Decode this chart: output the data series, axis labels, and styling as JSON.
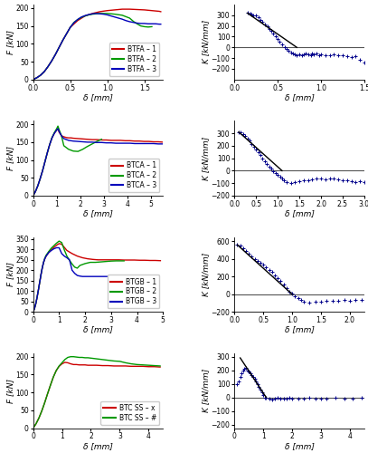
{
  "row1_left": {
    "title": "F [kN]",
    "xlabel": "δ [mm]",
    "xlim": [
      0,
      1.75
    ],
    "ylim": [
      0,
      210
    ],
    "yticks": [
      0,
      50,
      100,
      150,
      200
    ],
    "xticks": [
      0.0,
      0.5,
      1.0,
      1.5
    ],
    "legend": [
      "BTFA – 1",
      "BTFA – 2",
      "BTFA – 3"
    ],
    "colors": [
      "#cc0000",
      "#009900",
      "#0000bb"
    ],
    "c1_x": [
      0,
      0.05,
      0.1,
      0.15,
      0.2,
      0.25,
      0.3,
      0.35,
      0.4,
      0.45,
      0.5,
      0.6,
      0.7,
      0.8,
      0.9,
      1.0,
      1.1,
      1.2,
      1.3,
      1.4,
      1.5,
      1.6,
      1.65,
      1.7,
      1.72
    ],
    "c1_y": [
      0,
      5,
      12,
      22,
      36,
      52,
      70,
      90,
      110,
      128,
      146,
      165,
      178,
      185,
      190,
      193,
      195,
      197,
      197,
      196,
      195,
      193,
      192,
      191,
      190
    ],
    "c2_x": [
      0,
      0.05,
      0.1,
      0.15,
      0.2,
      0.25,
      0.3,
      0.35,
      0.4,
      0.45,
      0.5,
      0.55,
      0.6,
      0.65,
      0.7,
      0.75,
      0.8,
      0.9,
      1.0,
      1.1,
      1.2,
      1.3,
      1.35,
      1.4,
      1.45,
      1.5,
      1.55,
      1.6
    ],
    "c2_y": [
      0,
      5,
      12,
      22,
      36,
      52,
      70,
      90,
      110,
      128,
      146,
      160,
      168,
      174,
      178,
      181,
      183,
      185,
      185,
      183,
      180,
      172,
      163,
      156,
      150,
      148,
      147,
      148
    ],
    "c3_x": [
      0,
      0.05,
      0.1,
      0.15,
      0.2,
      0.25,
      0.3,
      0.35,
      0.4,
      0.45,
      0.5,
      0.55,
      0.6,
      0.65,
      0.7,
      0.75,
      0.8,
      0.85,
      0.9,
      0.95,
      1.0,
      1.05,
      1.1,
      1.15,
      1.2,
      1.25,
      1.3,
      1.35,
      1.4,
      1.45,
      1.5,
      1.55,
      1.6,
      1.65,
      1.7,
      1.72
    ],
    "c3_y": [
      0,
      5,
      12,
      22,
      36,
      52,
      70,
      90,
      110,
      128,
      146,
      159,
      168,
      175,
      179,
      182,
      184,
      185,
      184,
      183,
      181,
      178,
      175,
      172,
      169,
      165,
      162,
      160,
      158,
      157,
      157,
      156,
      156,
      156,
      155,
      155
    ]
  },
  "row1_right": {
    "title": "K [kN/mm]",
    "xlabel": "δ [mm]",
    "xlim": [
      0.0,
      1.5
    ],
    "ylim": [
      -300,
      400
    ],
    "yticks": [
      -200,
      -100,
      0,
      100,
      200,
      300
    ],
    "xticks": [
      0.0,
      0.5,
      1.0,
      1.5
    ],
    "scatter_x": [
      0.15,
      0.18,
      0.2,
      0.22,
      0.25,
      0.28,
      0.3,
      0.32,
      0.35,
      0.38,
      0.4,
      0.42,
      0.45,
      0.48,
      0.5,
      0.52,
      0.55,
      0.58,
      0.6,
      0.62,
      0.65,
      0.68,
      0.7,
      0.72,
      0.75,
      0.78,
      0.8,
      0.82,
      0.85,
      0.88,
      0.9,
      0.92,
      0.95,
      0.98,
      1.0,
      1.05,
      1.1,
      1.15,
      1.2,
      1.25,
      1.3,
      1.35,
      1.4,
      1.45,
      1.5
    ],
    "scatter_y": [
      320,
      315,
      305,
      295,
      295,
      280,
      260,
      240,
      215,
      195,
      175,
      155,
      130,
      105,
      80,
      55,
      30,
      5,
      -15,
      -30,
      -45,
      -55,
      -65,
      -70,
      -65,
      -70,
      -65,
      -60,
      -65,
      -70,
      -60,
      -65,
      -60,
      -70,
      -65,
      -70,
      -75,
      -65,
      -75,
      -70,
      -80,
      -90,
      -80,
      -120,
      -140
    ],
    "line_x": [
      0.15,
      0.72
    ],
    "line_y": [
      320,
      0
    ]
  },
  "row2_left": {
    "title": "F [kN]",
    "xlabel": "δ [mm]",
    "xlim": [
      0,
      5.5
    ],
    "ylim": [
      0,
      210
    ],
    "yticks": [
      0,
      50,
      100,
      150,
      200
    ],
    "xticks": [
      0,
      1,
      2,
      3,
      4,
      5
    ],
    "legend": [
      "BTCA – 1",
      "BTCA – 2",
      "BTCA – 3"
    ],
    "colors": [
      "#cc0000",
      "#009900",
      "#0000bb"
    ],
    "c1_x": [
      0,
      0.1,
      0.2,
      0.3,
      0.4,
      0.5,
      0.6,
      0.7,
      0.8,
      0.9,
      1.0,
      1.05,
      1.1,
      1.2,
      1.3,
      1.4,
      1.5,
      1.6,
      1.7,
      1.9,
      2.1,
      2.3,
      2.5,
      2.7,
      2.9,
      3.1,
      3.3,
      3.5,
      3.7,
      3.9,
      4.1,
      4.3,
      4.5,
      4.7,
      4.9,
      5.1,
      5.3,
      5.5
    ],
    "c1_y": [
      0,
      12,
      28,
      48,
      70,
      95,
      120,
      143,
      162,
      175,
      184,
      188,
      178,
      168,
      165,
      163,
      162,
      162,
      161,
      160,
      159,
      158,
      157,
      157,
      156,
      156,
      155,
      155,
      155,
      154,
      154,
      153,
      153,
      152,
      152,
      151,
      151,
      150
    ],
    "c2_x": [
      0,
      0.1,
      0.2,
      0.3,
      0.4,
      0.5,
      0.6,
      0.7,
      0.8,
      0.9,
      1.0,
      1.05,
      1.1,
      1.2,
      1.3,
      1.5,
      1.7,
      1.9,
      2.1,
      2.3,
      2.5,
      2.7,
      2.9
    ],
    "c2_y": [
      0,
      12,
      28,
      48,
      70,
      95,
      120,
      143,
      163,
      177,
      188,
      195,
      185,
      168,
      140,
      130,
      125,
      124,
      130,
      138,
      145,
      152,
      158
    ],
    "c3_x": [
      0,
      0.1,
      0.2,
      0.3,
      0.4,
      0.5,
      0.6,
      0.7,
      0.8,
      0.9,
      1.0,
      1.05,
      1.1,
      1.2,
      1.3,
      1.5,
      1.7,
      1.9,
      2.1,
      2.3,
      2.5,
      2.7,
      2.9,
      3.1,
      3.3,
      3.5,
      3.7,
      3.9,
      4.1,
      4.3,
      4.5,
      4.7,
      4.9,
      5.1,
      5.3,
      5.5
    ],
    "c3_y": [
      0,
      12,
      28,
      48,
      70,
      95,
      120,
      143,
      162,
      175,
      184,
      188,
      180,
      168,
      160,
      155,
      153,
      152,
      151,
      150,
      150,
      149,
      149,
      148,
      148,
      147,
      147,
      147,
      147,
      146,
      146,
      146,
      146,
      146,
      145,
      145
    ]
  },
  "row2_right": {
    "title": "K [kN/mm]",
    "xlabel": "δ [mm]",
    "xlim": [
      0.0,
      3.0
    ],
    "ylim": [
      -200,
      400
    ],
    "yticks": [
      -200,
      -100,
      0,
      100,
      200,
      300
    ],
    "xticks": [
      0.0,
      0.5,
      1.0,
      1.5,
      2.0,
      2.5,
      3.0
    ],
    "scatter_x": [
      0.1,
      0.15,
      0.2,
      0.25,
      0.3,
      0.35,
      0.4,
      0.45,
      0.5,
      0.55,
      0.6,
      0.65,
      0.7,
      0.75,
      0.8,
      0.85,
      0.9,
      0.95,
      1.0,
      1.05,
      1.1,
      1.15,
      1.2,
      1.3,
      1.4,
      1.5,
      1.6,
      1.7,
      1.8,
      1.9,
      2.0,
      2.1,
      2.2,
      2.3,
      2.4,
      2.5,
      2.6,
      2.7,
      2.8,
      2.9,
      3.0
    ],
    "scatter_y": [
      310,
      305,
      295,
      280,
      260,
      240,
      215,
      195,
      170,
      150,
      125,
      100,
      75,
      55,
      35,
      15,
      -5,
      -20,
      -35,
      -50,
      -65,
      -80,
      -90,
      -95,
      -90,
      -85,
      -80,
      -75,
      -70,
      -60,
      -65,
      -70,
      -60,
      -65,
      -70,
      -75,
      -80,
      -85,
      -90,
      -85,
      -90
    ],
    "line_x": [
      0.1,
      1.1
    ],
    "line_y": [
      310,
      0
    ]
  },
  "row3_left": {
    "title": "F [kN]",
    "xlabel": "δ [mm]",
    "xlim": [
      0,
      5
    ],
    "ylim": [
      0,
      360
    ],
    "yticks": [
      0,
      50,
      100,
      150,
      200,
      250,
      300,
      350
    ],
    "xticks": [
      0,
      1,
      2,
      3,
      4,
      5
    ],
    "legend": [
      "BTGB – 1",
      "BTGB – 2",
      "BTGB – 3"
    ],
    "colors": [
      "#cc0000",
      "#009900",
      "#0000bb"
    ],
    "c1_x": [
      0,
      0.05,
      0.1,
      0.15,
      0.2,
      0.25,
      0.3,
      0.35,
      0.4,
      0.45,
      0.5,
      0.6,
      0.7,
      0.8,
      0.9,
      1.0,
      1.1,
      1.2,
      1.3,
      1.5,
      1.7,
      1.9,
      2.1,
      2.3,
      2.5,
      2.7,
      2.9,
      3.1,
      3.3,
      3.5,
      3.7,
      3.9,
      4.1,
      4.3,
      4.5,
      4.7,
      4.9
    ],
    "c1_y": [
      0,
      15,
      38,
      68,
      103,
      140,
      177,
      210,
      237,
      255,
      268,
      285,
      298,
      310,
      320,
      328,
      325,
      310,
      295,
      280,
      268,
      260,
      255,
      252,
      250,
      250,
      250,
      250,
      250,
      249,
      249,
      249,
      248,
      248,
      247,
      247,
      246
    ],
    "c2_x": [
      0,
      0.05,
      0.1,
      0.15,
      0.2,
      0.25,
      0.3,
      0.35,
      0.4,
      0.45,
      0.5,
      0.6,
      0.7,
      0.8,
      0.9,
      1.0,
      1.1,
      1.2,
      1.3,
      1.4,
      1.5,
      1.6,
      1.7,
      1.8,
      2.0,
      2.2,
      2.4,
      2.6,
      2.8,
      3.0,
      3.2,
      3.5
    ],
    "c2_y": [
      0,
      15,
      38,
      68,
      103,
      140,
      177,
      210,
      237,
      258,
      272,
      290,
      306,
      318,
      330,
      340,
      333,
      298,
      268,
      248,
      230,
      215,
      210,
      223,
      232,
      238,
      238,
      240,
      242,
      244,
      245,
      245
    ],
    "c3_x": [
      0,
      0.05,
      0.1,
      0.15,
      0.2,
      0.25,
      0.3,
      0.35,
      0.4,
      0.45,
      0.5,
      0.6,
      0.7,
      0.8,
      0.9,
      1.0,
      1.1,
      1.2,
      1.3,
      1.4,
      1.5,
      1.6,
      1.7,
      1.8,
      1.9,
      2.0,
      2.2,
      2.4,
      2.6,
      2.8,
      3.0,
      3.2,
      3.5,
      3.8,
      4.1,
      4.4
    ],
    "c3_y": [
      0,
      15,
      38,
      68,
      103,
      140,
      177,
      210,
      237,
      255,
      268,
      285,
      295,
      303,
      308,
      308,
      280,
      268,
      260,
      250,
      200,
      185,
      175,
      172,
      170,
      170,
      170,
      170,
      170,
      170,
      170,
      170,
      170,
      170,
      170,
      170
    ]
  },
  "row3_right": {
    "title": "K [kN/mm]",
    "xlabel": "δ [mm]",
    "xlim": [
      0.0,
      2.25
    ],
    "ylim": [
      -200,
      650
    ],
    "yticks": [
      -200,
      0,
      200,
      400,
      600
    ],
    "xticks": [
      0.0,
      0.5,
      1.0,
      1.5,
      2.0
    ],
    "scatter_x": [
      0.05,
      0.1,
      0.15,
      0.2,
      0.25,
      0.3,
      0.35,
      0.4,
      0.45,
      0.5,
      0.55,
      0.6,
      0.65,
      0.7,
      0.75,
      0.8,
      0.85,
      0.9,
      0.95,
      1.0,
      1.05,
      1.1,
      1.15,
      1.2,
      1.3,
      1.4,
      1.5,
      1.6,
      1.7,
      1.8,
      1.9,
      2.0,
      2.1,
      2.2
    ],
    "scatter_y": [
      560,
      555,
      520,
      490,
      460,
      430,
      400,
      375,
      355,
      335,
      310,
      280,
      250,
      215,
      185,
      150,
      110,
      70,
      30,
      5,
      -20,
      -40,
      -60,
      -80,
      -90,
      -85,
      -80,
      -70,
      -75,
      -70,
      -65,
      -70,
      -60,
      -65
    ],
    "line_x": [
      0.05,
      1.0
    ],
    "line_y": [
      560,
      0
    ]
  },
  "row4_left": {
    "title": "F [kN]",
    "xlabel": "δ [mm]",
    "xlim": [
      0,
      4.5
    ],
    "ylim": [
      0,
      210
    ],
    "yticks": [
      0,
      50,
      100,
      150,
      200
    ],
    "xticks": [
      0,
      1,
      2,
      3,
      4
    ],
    "legend": [
      "BTC SS – x",
      "BTC SS – #"
    ],
    "colors": [
      "#cc0000",
      "#009900"
    ],
    "c1_x": [
      0,
      0.1,
      0.2,
      0.3,
      0.4,
      0.5,
      0.6,
      0.7,
      0.8,
      0.9,
      1.0,
      1.1,
      1.2,
      1.3,
      1.4,
      1.5,
      1.6,
      1.7,
      1.8,
      1.9,
      2.0,
      2.2,
      2.4,
      2.6,
      2.8,
      3.0,
      3.2,
      3.4,
      3.6,
      3.8,
      4.0,
      4.2,
      4.4
    ],
    "c1_y": [
      0,
      12,
      28,
      48,
      71,
      96,
      120,
      143,
      161,
      173,
      180,
      184,
      183,
      180,
      178,
      178,
      177,
      177,
      177,
      176,
      176,
      176,
      175,
      175,
      174,
      174,
      174,
      173,
      173,
      173,
      172,
      172,
      171
    ],
    "c2_x": [
      0,
      0.1,
      0.2,
      0.3,
      0.4,
      0.5,
      0.6,
      0.7,
      0.8,
      0.9,
      1.0,
      1.1,
      1.2,
      1.3,
      1.4,
      1.5,
      1.6,
      1.7,
      1.8,
      1.9,
      2.0,
      2.2,
      2.4,
      2.6,
      2.8,
      3.0,
      3.2,
      3.4,
      3.6,
      3.8,
      4.0,
      4.2,
      4.4
    ],
    "c2_y": [
      0,
      12,
      28,
      48,
      71,
      96,
      120,
      143,
      161,
      174,
      183,
      192,
      198,
      200,
      200,
      199,
      198,
      198,
      197,
      197,
      196,
      194,
      192,
      190,
      188,
      187,
      183,
      180,
      178,
      177,
      176,
      175,
      174
    ]
  },
  "row4_right": {
    "title": "K [kN/mm]",
    "xlabel": "δ [mm]",
    "xlim": [
      0.0,
      4.5
    ],
    "ylim": [
      -225,
      325
    ],
    "yticks": [
      -200,
      -100,
      0,
      100,
      200,
      300
    ],
    "xticks": [
      0,
      1,
      2,
      3,
      4
    ],
    "scatter_x": [
      0.1,
      0.15,
      0.2,
      0.25,
      0.3,
      0.35,
      0.4,
      0.45,
      0.5,
      0.55,
      0.6,
      0.65,
      0.7,
      0.75,
      0.8,
      0.85,
      0.9,
      0.95,
      1.0,
      1.05,
      1.1,
      1.2,
      1.3,
      1.4,
      1.5,
      1.6,
      1.7,
      1.8,
      1.9,
      2.0,
      2.2,
      2.4,
      2.6,
      2.8,
      3.0,
      3.2,
      3.5,
      3.8,
      4.1,
      4.4
    ],
    "scatter_y": [
      100,
      120,
      150,
      180,
      200,
      210,
      215,
      200,
      190,
      175,
      165,
      150,
      135,
      120,
      100,
      80,
      60,
      40,
      20,
      0,
      -5,
      -10,
      -15,
      -8,
      -5,
      -8,
      -10,
      -12,
      -5,
      -8,
      -10,
      -12,
      -5,
      -10,
      -8,
      -10,
      -5,
      -10,
      -8,
      -5
    ],
    "line_x": [
      0.2,
      1.1
    ],
    "line_y": [
      290,
      0
    ]
  },
  "scatter_color": "#00008b",
  "scatter_marker": "+",
  "scatter_size": 8,
  "line_color": "#000000",
  "zero_line_color": "#555555",
  "lw_curve": 1.0,
  "tick_fontsize": 5.5,
  "label_fontsize": 6.5,
  "legend_fontsize": 5.5
}
